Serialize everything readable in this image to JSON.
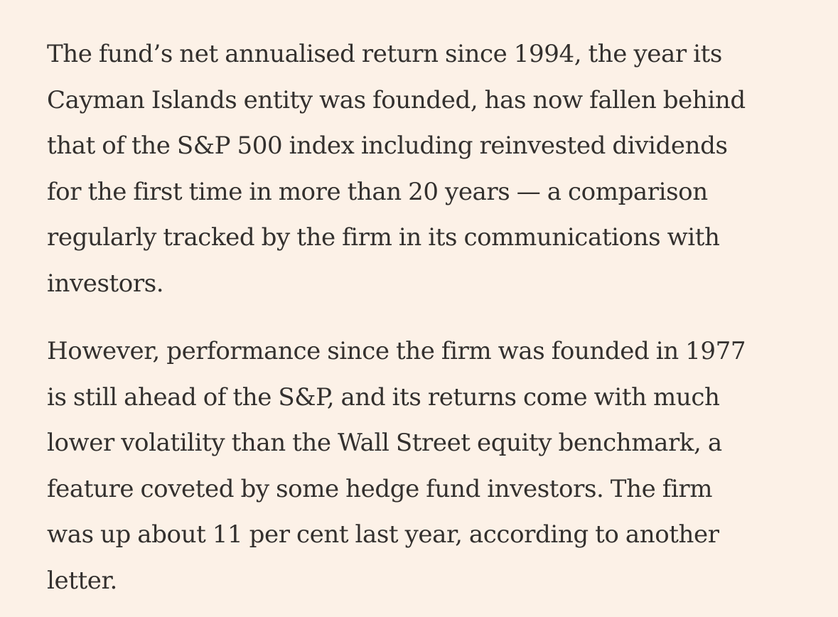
{
  "article": {
    "paragraphs": [
      {
        "lines": [
          "The fund’s net annualised return since 1994, the year its",
          "Cayman Islands entity was founded, has now fallen behind",
          "that of the S&P 500 index including reinvested dividends",
          "for the first time in more than 20 years — a comparison",
          "regularly tracked by the firm in its communications with",
          "investors."
        ]
      },
      {
        "lines": [
          "However, performance since the firm was founded in 1977",
          "is still ahead of the S&P, and its returns come with much",
          "lower volatility than the Wall Street equity benchmark, a",
          "feature coveted by some hedge fund investors. The firm",
          "was up about 11 per cent last year, according to another",
          "letter."
        ]
      }
    ]
  }
}
